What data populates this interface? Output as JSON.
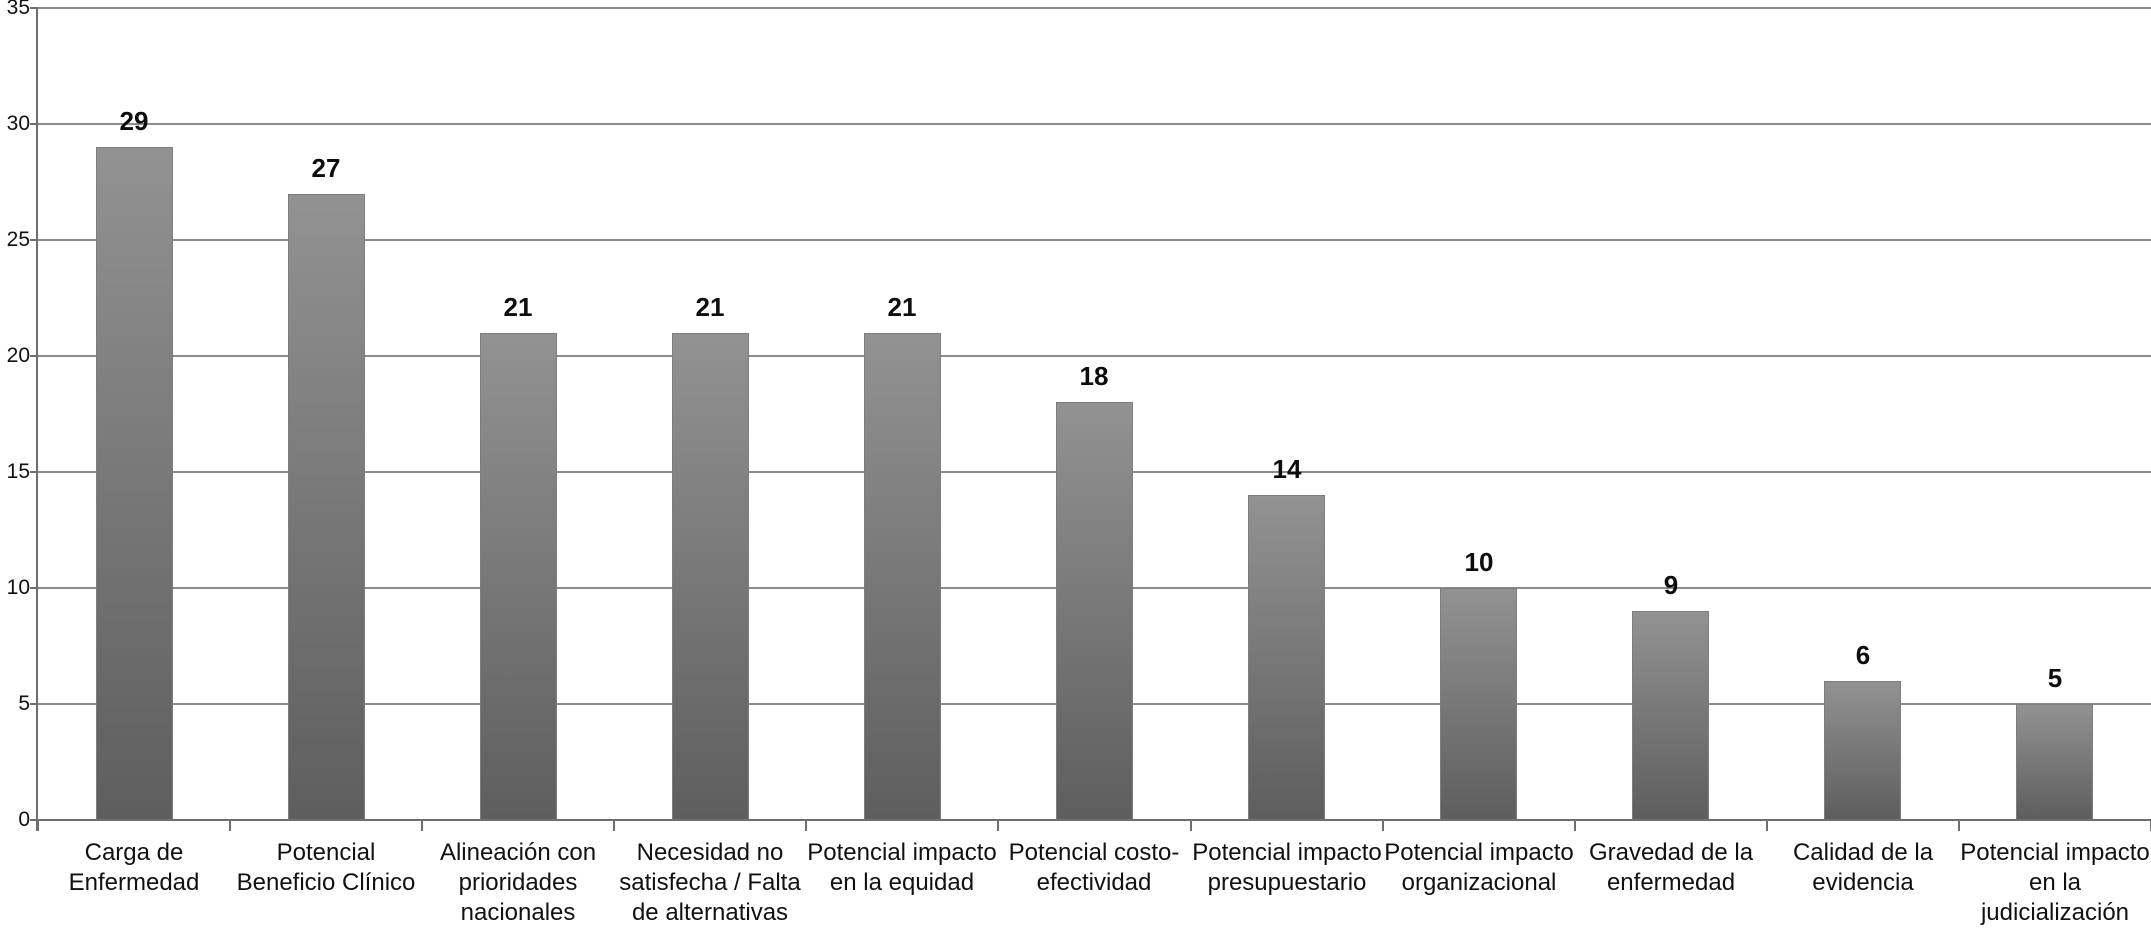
{
  "chart_data": {
    "type": "bar",
    "title": "",
    "xlabel": "",
    "ylabel": "",
    "categories": [
      "Carga de Enfermedad",
      "Potencial Beneficio Clínico",
      "Alineación con prioridades nacionales",
      "Necesidad no satisfecha / Falta de alternativas",
      "Potencial impacto en la equidad",
      "Potencial costo-efectividad",
      "Potencial impacto presupuestario",
      "Potencial impacto organizacional",
      "Gravedad de la enfermedad",
      "Calidad de la evidencia",
      "Potencial impacto en la judicialización"
    ],
    "label_lines": [
      [
        "Carga de",
        "Enfermedad"
      ],
      [
        "Potencial",
        "Beneficio Clínico"
      ],
      [
        "Alineación con",
        "prioridades",
        "nacionales"
      ],
      [
        "Necesidad no",
        "satisfecha / Falta",
        "de alternativas"
      ],
      [
        "Potencial impacto",
        "en la equidad"
      ],
      [
        "Potencial costo-",
        "efectividad"
      ],
      [
        "Potencial impacto",
        "presupuestario"
      ],
      [
        "Potencial impacto",
        "organizacional"
      ],
      [
        "Gravedad de la",
        "enfermedad"
      ],
      [
        "Calidad de la",
        "evidencia"
      ],
      [
        "Potencial impacto",
        "en la",
        "judicialización"
      ]
    ],
    "values": [
      29,
      27,
      21,
      21,
      21,
      18,
      14,
      10,
      9,
      6,
      5
    ],
    "yticks": [
      0,
      5,
      10,
      15,
      20,
      25,
      30,
      35
    ],
    "ylim": [
      0,
      35
    ],
    "grid": true,
    "legend_position": "none",
    "colors": {
      "bar_gradient_top": "#929292",
      "bar_gradient_bottom": "#5e5e5e",
      "bar_border": "#7d7d7d",
      "gridline": "#8c8c8c",
      "axis": "#6f6f6f",
      "text": "#111111",
      "background": "#ffffff"
    }
  }
}
